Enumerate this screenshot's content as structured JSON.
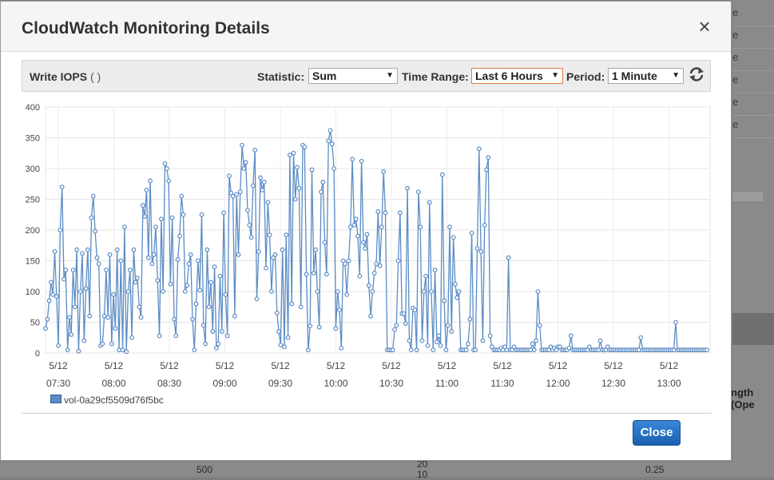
{
  "background": {
    "right_rows": [
      "e",
      "e",
      "e",
      "e",
      "e",
      "e"
    ],
    "right_label": "ngth (Ope",
    "bottom_labels": [
      "500",
      "20",
      "0.25",
      "10"
    ]
  },
  "modal": {
    "title": "CloudWatch Monitoring Details",
    "close_icon": "×",
    "close_button": "Close"
  },
  "toolbar": {
    "metric_name": "Write IOPS",
    "metric_unit": "( )",
    "statistic_label": "Statistic:",
    "statistic_value": "Sum",
    "time_range_label": "Time Range:",
    "time_range_value": "Last 6 Hours",
    "period_label": "Period:",
    "period_value": "1 Minute",
    "refresh_icon": "refresh-icon"
  },
  "chart_data": {
    "type": "line",
    "title": "",
    "xlabel": "",
    "ylabel": "",
    "ylim": [
      0,
      400
    ],
    "yticks": [
      0,
      50,
      100,
      150,
      200,
      250,
      300,
      350,
      400
    ],
    "xticks": [
      {
        "date": "5/12",
        "time": "07:30"
      },
      {
        "date": "5/12",
        "time": "08:00"
      },
      {
        "date": "5/12",
        "time": "08:30"
      },
      {
        "date": "5/12",
        "time": "09:00"
      },
      {
        "date": "5/12",
        "time": "09:30"
      },
      {
        "date": "5/12",
        "time": "10:00"
      },
      {
        "date": "5/12",
        "time": "10:30"
      },
      {
        "date": "5/12",
        "time": "11:00"
      },
      {
        "date": "5/12",
        "time": "11:30"
      },
      {
        "date": "5/12",
        "time": "12:00"
      },
      {
        "date": "5/12",
        "time": "12:30"
      },
      {
        "date": "5/12",
        "time": "13:00"
      }
    ],
    "grid": true,
    "legend_position": "bottom-left",
    "series": [
      {
        "name": "vol-0a29cf5509d76f5bc",
        "color": "#5b8cc5",
        "values": [
          40,
          55,
          85,
          115,
          95,
          165,
          92,
          12,
          200,
          270,
          120,
          135,
          5,
          58,
          30,
          135,
          75,
          168,
          3,
          100,
          162,
          20,
          105,
          168,
          60,
          220,
          255,
          198,
          155,
          145,
          12,
          15,
          60,
          135,
          58,
          160,
          15,
          95,
          40,
          168,
          5,
          150,
          5,
          205,
          2,
          100,
          135,
          25,
          168,
          115,
          122,
          75,
          58,
          240,
          222,
          265,
          155,
          280,
          145,
          160,
          205,
          118,
          28,
          218,
          100,
          308,
          300,
          280,
          112,
          220,
          55,
          28,
          152,
          190,
          255,
          225,
          100,
          110,
          145,
          160,
          55,
          5,
          80,
          150,
          102,
          225,
          45,
          15,
          168,
          75,
          115,
          35,
          140,
          8,
          15,
          125,
          35,
          228,
          95,
          28,
          288,
          260,
          255,
          60,
          258,
          160,
          262,
          338,
          300,
          310,
          232,
          208,
          188,
          272,
          330,
          88,
          165,
          285,
          265,
          278,
          138,
          245,
          192,
          100,
          155,
          160,
          65,
          35,
          13,
          168,
          10,
          192,
          25,
          322,
          80,
          325,
          250,
          302,
          268,
          75,
          338,
          335,
          128,
          5,
          44,
          298,
          130,
          168,
          100,
          42,
          262,
          278,
          180,
          128,
          345,
          362,
          340,
          300,
          40,
          100,
          70,
          8,
          150,
          145,
          95,
          150,
          205,
          315,
          208,
          218,
          190,
          125,
          312,
          180,
          170,
          193,
          110,
          60,
          100,
          130,
          145,
          230,
          142,
          205,
          295,
          228,
          5,
          5,
          5,
          5,
          38,
          45,
          150,
          228,
          64,
          64,
          48,
          268,
          20,
          5,
          73,
          70,
          5,
          262,
          205,
          20,
          100,
          125,
          12,
          245,
          100,
          5,
          135,
          18,
          28,
          12,
          290,
          85,
          5,
          45,
          205,
          35,
          188,
          112,
          90,
          100,
          5,
          5,
          5,
          5,
          15,
          55,
          195,
          5,
          5,
          170,
          332,
          165,
          20,
          208,
          298,
          318,
          28,
          10,
          5,
          5,
          5,
          5,
          8,
          5,
          10,
          5,
          155,
          5,
          5,
          10,
          5,
          5,
          5,
          5,
          5,
          5,
          5,
          5,
          5,
          15,
          5,
          20,
          100,
          45,
          5,
          5,
          5,
          5,
          5,
          10,
          5,
          8,
          5,
          10,
          10,
          5,
          5,
          5,
          5,
          8,
          28,
          5,
          5,
          5,
          5,
          5,
          5,
          5,
          5,
          5,
          10,
          5,
          5,
          5,
          5,
          5,
          20,
          5,
          5,
          5,
          10,
          5,
          5,
          5,
          5,
          5,
          5,
          5,
          5,
          5,
          5,
          5,
          5,
          5,
          5,
          5,
          5,
          5,
          25,
          5,
          5,
          5,
          5,
          5,
          5,
          5,
          5,
          5,
          5,
          5,
          5,
          5,
          5,
          5,
          5,
          5,
          5,
          50,
          5,
          5,
          5,
          5,
          5,
          5,
          5,
          5,
          5,
          5,
          5,
          5,
          5,
          5,
          5,
          5,
          5
        ]
      }
    ]
  }
}
